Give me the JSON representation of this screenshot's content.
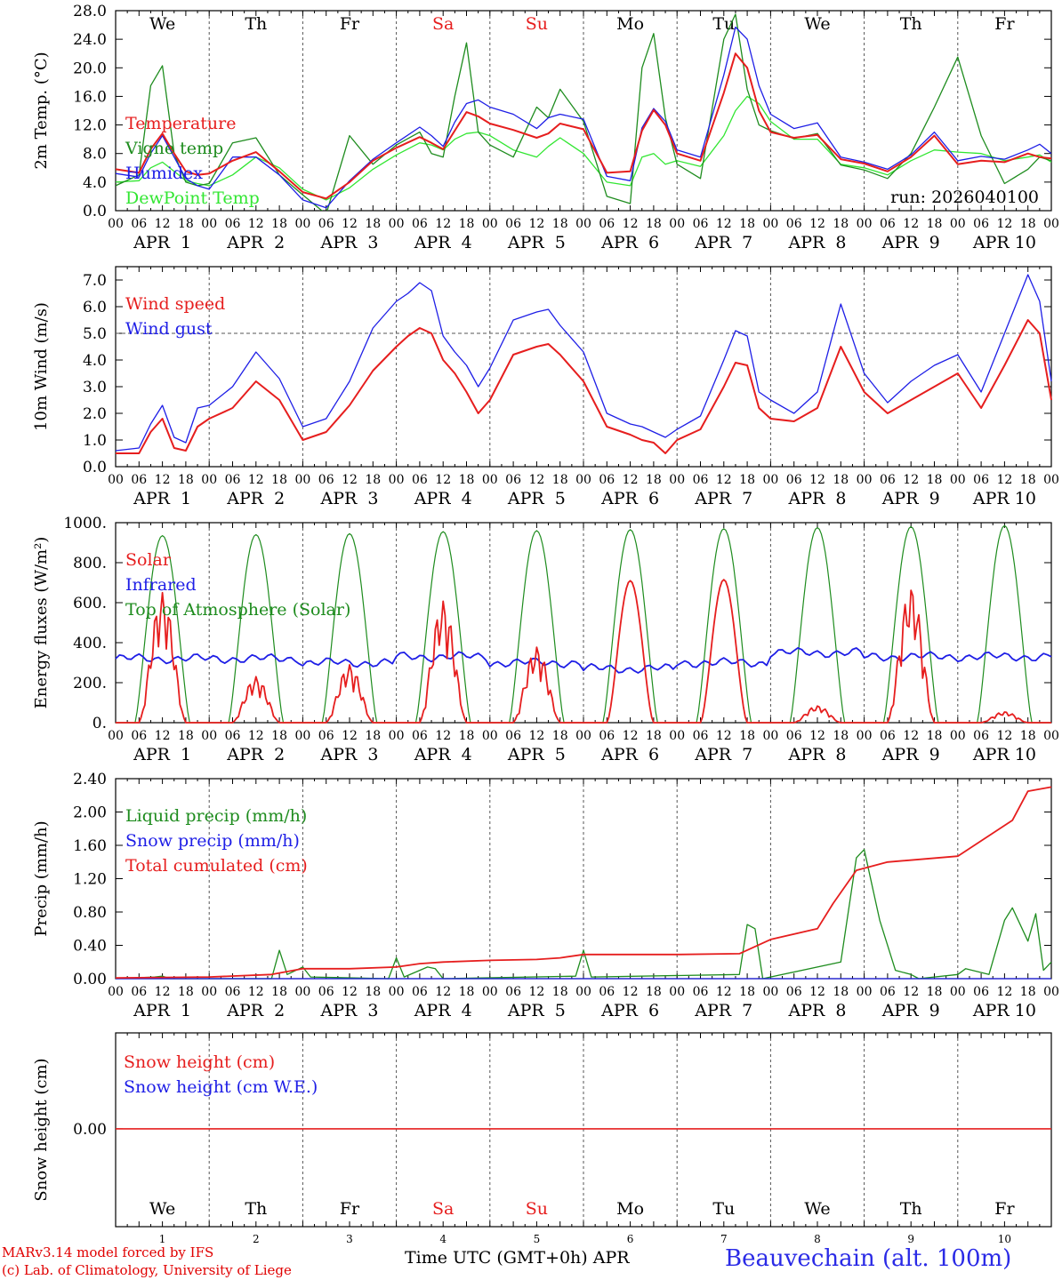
{
  "days": {
    "weekday_labels": [
      "We",
      "Th",
      "Fr",
      "Sa",
      "Su",
      "Mo",
      "Tu",
      "We",
      "Th",
      "Fr"
    ],
    "weekend_flags": [
      false,
      false,
      false,
      true,
      true,
      false,
      false,
      false,
      false,
      false
    ],
    "hour_ticks": [
      "00",
      "06",
      "12",
      "18"
    ],
    "date_labels": [
      "APR  1",
      "APR  2",
      "APR  3",
      "APR  4",
      "APR  5",
      "APR  6",
      "APR  7",
      "APR  8",
      "APR  9",
      "APR 10"
    ],
    "day_numbers": [
      "1",
      "2",
      "3",
      "4",
      "5",
      "6",
      "7",
      "8",
      "9",
      "10"
    ],
    "end_tick": "00"
  },
  "colors": {
    "red": "#e61e1e",
    "green": "#1e8c1e",
    "blue": "#1e1ee6",
    "lightgreen": "#32e632"
  },
  "chart_data": [
    {
      "type": "line",
      "ylabel": "2m Temp. (°C)",
      "ylim": [
        0,
        28
      ],
      "y_ticks": [
        "0.0",
        "4.0",
        "8.0",
        "12.0",
        "16.0",
        "20.0",
        "24.0",
        "28.0"
      ],
      "annotation": "run: 2026040100",
      "x_hours": [
        0,
        6,
        9,
        12,
        15,
        18,
        21,
        24,
        30,
        36,
        42,
        48,
        54,
        60,
        66,
        72,
        78,
        81,
        84,
        87,
        90,
        93,
        96,
        102,
        108,
        111,
        114,
        120,
        126,
        132,
        135,
        138,
        141,
        144,
        150,
        156,
        159,
        162,
        165,
        168,
        174,
        180,
        186,
        192,
        198,
        204,
        210,
        216,
        222,
        228,
        234,
        237,
        240
      ],
      "series": [
        {
          "name": "Temperature",
          "color": "red",
          "values": [
            5.8,
            5.3,
            8.6,
            10.8,
            8.0,
            5.5,
            5.0,
            5.2,
            7.0,
            8.2,
            5.5,
            2.6,
            1.7,
            4.0,
            7.0,
            8.8,
            10.3,
            9.5,
            8.6,
            11.2,
            13.8,
            13.2,
            12.2,
            11.3,
            10.2,
            10.8,
            12.2,
            11.4,
            5.3,
            5.5,
            11.2,
            14.1,
            12.0,
            8.0,
            7.0,
            16.5,
            22.0,
            20.0,
            14.0,
            11.0,
            10.2,
            10.6,
            7.2,
            6.6,
            5.5,
            7.5,
            10.5,
            6.5,
            7.0,
            6.8,
            8.0,
            7.5,
            7.3
          ]
        },
        {
          "name": "Vigne temp",
          "color": "green",
          "values": [
            3.5,
            5.0,
            17.5,
            20.3,
            8.0,
            4.0,
            3.5,
            3.8,
            9.5,
            10.2,
            5.0,
            2.2,
            -0.5,
            10.5,
            6.5,
            9.2,
            11.0,
            8.0,
            7.5,
            16.0,
            23.5,
            11.0,
            9.2,
            7.5,
            14.5,
            13.0,
            17.0,
            12.5,
            2.0,
            1.0,
            20.0,
            24.8,
            13.0,
            6.5,
            4.5,
            24.0,
            27.5,
            17.0,
            12.0,
            11.2,
            10.1,
            10.8,
            6.4,
            5.7,
            4.5,
            8.0,
            14.5,
            21.5,
            10.5,
            3.8,
            5.8,
            7.5,
            7.0
          ]
        },
        {
          "name": "Humidex",
          "color": "blue",
          "values": [
            5.2,
            4.7,
            8.0,
            10.5,
            7.5,
            4.5,
            3.5,
            3.0,
            7.5,
            7.5,
            5.0,
            1.5,
            0.4,
            4.2,
            7.2,
            9.5,
            11.7,
            10.5,
            9.0,
            12.4,
            15.0,
            15.5,
            14.5,
            13.5,
            11.5,
            13.0,
            13.5,
            12.8,
            4.8,
            4.2,
            11.6,
            14.3,
            12.5,
            8.5,
            7.5,
            19.0,
            25.7,
            24.0,
            17.5,
            13.5,
            11.5,
            12.3,
            7.5,
            6.8,
            5.8,
            7.8,
            11.0,
            7.0,
            7.6,
            7.2,
            8.5,
            9.3,
            8.0
          ]
        },
        {
          "name": "DewPoint Temp",
          "color": "lightgreen",
          "values": [
            4.0,
            4.2,
            6.0,
            6.8,
            5.5,
            4.2,
            3.8,
            3.5,
            5.0,
            7.5,
            6.0,
            3.0,
            1.5,
            3.2,
            5.8,
            7.8,
            9.5,
            9.2,
            8.5,
            10.0,
            10.8,
            11.0,
            10.5,
            8.5,
            7.5,
            9.0,
            10.2,
            8.0,
            4.0,
            3.5,
            7.5,
            8.0,
            6.5,
            7.0,
            6.2,
            10.5,
            14.0,
            16.0,
            15.0,
            12.5,
            10.0,
            10.0,
            6.5,
            6.0,
            5.0,
            7.0,
            8.5,
            8.2,
            8.0,
            7.0,
            7.5,
            7.8,
            6.8
          ]
        }
      ]
    },
    {
      "type": "line",
      "ylabel": "10m Wind (m/s)",
      "ylim": [
        0,
        7.5
      ],
      "y_ticks": [
        "0.0",
        "1.0",
        "2.0",
        "3.0",
        "4.0",
        "5.0",
        "6.0",
        "7.0"
      ],
      "reference_line": 5.0,
      "x_hours": [
        0,
        6,
        9,
        12,
        15,
        18,
        21,
        24,
        30,
        36,
        42,
        48,
        54,
        60,
        66,
        72,
        75,
        78,
        81,
        84,
        87,
        90,
        93,
        96,
        102,
        108,
        111,
        114,
        120,
        126,
        132,
        135,
        138,
        141,
        144,
        150,
        156,
        159,
        162,
        165,
        168,
        174,
        180,
        186,
        192,
        198,
        204,
        210,
        216,
        222,
        228,
        234,
        237,
        240
      ],
      "series": [
        {
          "name": "Wind speed",
          "color": "red",
          "values": [
            0.5,
            0.5,
            1.3,
            1.8,
            0.7,
            0.6,
            1.5,
            1.8,
            2.2,
            3.2,
            2.5,
            1.0,
            1.3,
            2.3,
            3.6,
            4.5,
            4.9,
            5.2,
            5.0,
            4.0,
            3.5,
            2.8,
            2.0,
            2.5,
            4.2,
            4.5,
            4.6,
            4.2,
            3.2,
            1.5,
            1.2,
            1.0,
            0.9,
            0.5,
            1.0,
            1.4,
            3.0,
            3.9,
            3.8,
            2.2,
            1.8,
            1.7,
            2.2,
            4.5,
            2.8,
            2.0,
            2.5,
            3.0,
            3.5,
            2.2,
            3.8,
            5.5,
            5.0,
            2.5
          ]
        },
        {
          "name": "Wind gust",
          "color": "blue",
          "values": [
            0.6,
            0.7,
            1.6,
            2.3,
            1.1,
            0.9,
            2.2,
            2.3,
            3.0,
            4.3,
            3.3,
            1.5,
            1.8,
            3.2,
            5.2,
            6.2,
            6.5,
            6.9,
            6.6,
            4.9,
            4.3,
            3.8,
            3.0,
            3.7,
            5.5,
            5.8,
            5.9,
            5.3,
            4.3,
            2.0,
            1.6,
            1.5,
            1.3,
            1.1,
            1.4,
            1.9,
            4.0,
            5.1,
            4.9,
            2.8,
            2.5,
            2.0,
            2.8,
            6.1,
            3.5,
            2.4,
            3.2,
            3.8,
            4.2,
            2.8,
            5.0,
            7.2,
            6.2,
            3.2
          ]
        }
      ]
    },
    {
      "type": "line",
      "ylabel": "Energy fluxes (W/m²)",
      "ylim": [
        0,
        1000
      ],
      "y_ticks": [
        "0.",
        "200.",
        "400.",
        "600.",
        "800.",
        "1000."
      ],
      "series": [
        {
          "name": "Solar",
          "color": "red",
          "daily_peaks": [
            650,
            230,
            290,
            610,
            380,
            710,
            715,
            85,
            680,
            55
          ]
        },
        {
          "name": "Infrared",
          "color": "blue",
          "daily_means": [
            320,
            320,
            300,
            330,
            300,
            270,
            300,
            350,
            330,
            330
          ]
        },
        {
          "name": "Top of Atmosphere (Solar)",
          "color": "green",
          "daily_peaks": [
            935,
            940,
            945,
            955,
            960,
            965,
            970,
            975,
            980,
            985
          ]
        }
      ]
    },
    {
      "type": "line",
      "ylabel": "Precip (mm/h)",
      "ylim": [
        0,
        2.4
      ],
      "y_ticks": [
        "0.00",
        "0.40",
        "0.80",
        "1.20",
        "1.60",
        "2.00",
        "2.40"
      ],
      "series": [
        {
          "name": "Liquid precip (mm/h)",
          "color": "green",
          "x_hours": [
            0,
            10,
            12,
            14,
            40,
            42,
            44,
            48,
            50,
            70,
            72,
            74,
            80,
            82,
            84,
            118,
            120,
            122,
            160,
            162,
            164,
            166,
            186,
            190,
            192,
            196,
            200,
            204,
            206,
            216,
            218,
            224,
            228,
            230,
            234,
            236,
            238,
            240
          ],
          "values": [
            0,
            0.02,
            0.03,
            0,
            0,
            0.34,
            0.05,
            0.14,
            0.02,
            0,
            0.25,
            0.02,
            0.14,
            0.12,
            0,
            0.03,
            0.34,
            0.02,
            0.05,
            0.65,
            0.6,
            0,
            0.2,
            1.45,
            1.55,
            0.7,
            0.1,
            0.05,
            0,
            0.05,
            0.12,
            0.05,
            0.7,
            0.85,
            0.45,
            0.78,
            0.1,
            0.2
          ]
        },
        {
          "name": "Snow precip (mm/h)",
          "color": "blue",
          "x_hours": [
            0,
            240
          ],
          "values": [
            0,
            0
          ]
        },
        {
          "name": "Total cumulated (cm)",
          "color": "red",
          "x_hours": [
            0,
            24,
            40,
            48,
            60,
            72,
            78,
            84,
            96,
            108,
            114,
            120,
            144,
            160,
            168,
            180,
            184,
            190,
            198,
            216,
            230,
            234,
            240
          ],
          "values": [
            0.01,
            0.02,
            0.05,
            0.12,
            0.12,
            0.14,
            0.18,
            0.2,
            0.22,
            0.23,
            0.25,
            0.29,
            0.29,
            0.3,
            0.47,
            0.6,
            0.9,
            1.3,
            1.4,
            1.47,
            1.9,
            2.25,
            2.3
          ]
        }
      ]
    },
    {
      "type": "line",
      "ylabel": "Snow height (cm)",
      "y_ticks": [
        "0.00"
      ],
      "series": [
        {
          "name": "Snow height (cm)",
          "color": "red",
          "values": [
            0,
            0
          ]
        },
        {
          "name": "Snow height (cm W.E.)",
          "color": "blue",
          "values": [
            0,
            0
          ]
        }
      ]
    }
  ],
  "footer": {
    "model_line": "MARv3.14 model forced by IFS",
    "credit_line": "(c) Lab. of Climatology, University of Liege",
    "xlabel": "Time UTC (GMT+0h) APR",
    "station": "Beauvechain (alt. 100m)"
  }
}
